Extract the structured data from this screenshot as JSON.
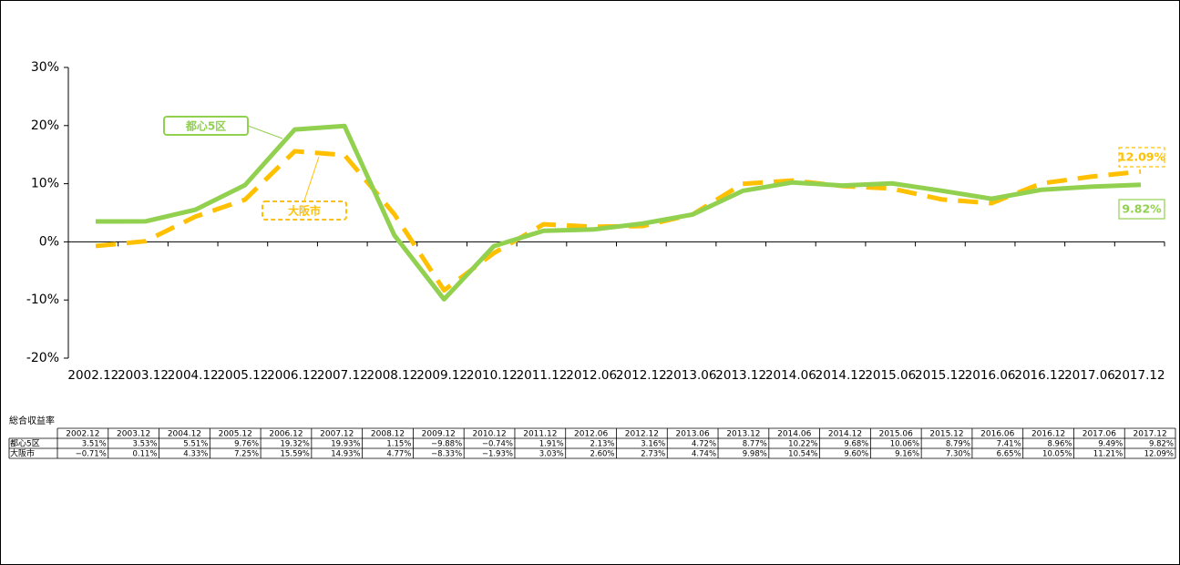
{
  "chart_data": {
    "type": "line",
    "categories": [
      "2002.12",
      "2003.12",
      "2004.12",
      "2005.12",
      "2006.12",
      "2007.12",
      "2008.12",
      "2009.12",
      "2010.12",
      "2011.12",
      "2012.06",
      "2012.12",
      "2013.06",
      "2013.12",
      "2014.06",
      "2014.12",
      "2015.06",
      "2015.12",
      "2016.06",
      "2016.12",
      "2017.06",
      "2017.12"
    ],
    "series": [
      {
        "name": "都心5区",
        "color": "#92d050",
        "dashed": false,
        "values": [
          3.51,
          3.53,
          5.51,
          9.76,
          19.32,
          19.93,
          1.15,
          -9.88,
          -0.74,
          1.91,
          2.13,
          3.16,
          4.72,
          8.77,
          10.22,
          9.68,
          10.06,
          8.79,
          7.41,
          8.96,
          9.49,
          9.82
        ],
        "value_labels": [
          "3.51%",
          "3.53%",
          "5.51%",
          "9.76%",
          "19.32%",
          "19.93%",
          "1.15%",
          "−9.88%",
          "−0.74%",
          "1.91%",
          "2.13%",
          "3.16%",
          "4.72%",
          "8.77%",
          "10.22%",
          "9.68%",
          "10.06%",
          "8.79%",
          "7.41%",
          "8.96%",
          "9.49%",
          "9.82%"
        ]
      },
      {
        "name": "大阪市",
        "color": "#ffc000",
        "dashed": true,
        "values": [
          -0.71,
          0.11,
          4.33,
          7.25,
          15.59,
          14.93,
          4.77,
          -8.33,
          -1.93,
          3.03,
          2.6,
          2.73,
          4.74,
          9.98,
          10.54,
          9.6,
          9.16,
          7.3,
          6.65,
          10.05,
          11.21,
          12.09
        ],
        "value_labels": [
          "−0.71%",
          "0.11%",
          "4.33%",
          "7.25%",
          "15.59%",
          "14.93%",
          "4.77%",
          "−8.33%",
          "−1.93%",
          "3.03%",
          "2.60%",
          "2.73%",
          "4.74%",
          "9.98%",
          "10.54%",
          "9.60%",
          "9.16%",
          "7.30%",
          "6.65%",
          "10.05%",
          "11.21%",
          "12.09%"
        ]
      }
    ],
    "ylim": [
      -20,
      30
    ],
    "yticks": [
      {
        "value": -20,
        "label": "-20%"
      },
      {
        "value": -10,
        "label": "-10%"
      },
      {
        "value": 0,
        "label": "0%"
      },
      {
        "value": 10,
        "label": "10%"
      },
      {
        "value": 20,
        "label": "20%"
      },
      {
        "value": 30,
        "label": "30%"
      }
    ],
    "table_title": "総合収益率"
  }
}
